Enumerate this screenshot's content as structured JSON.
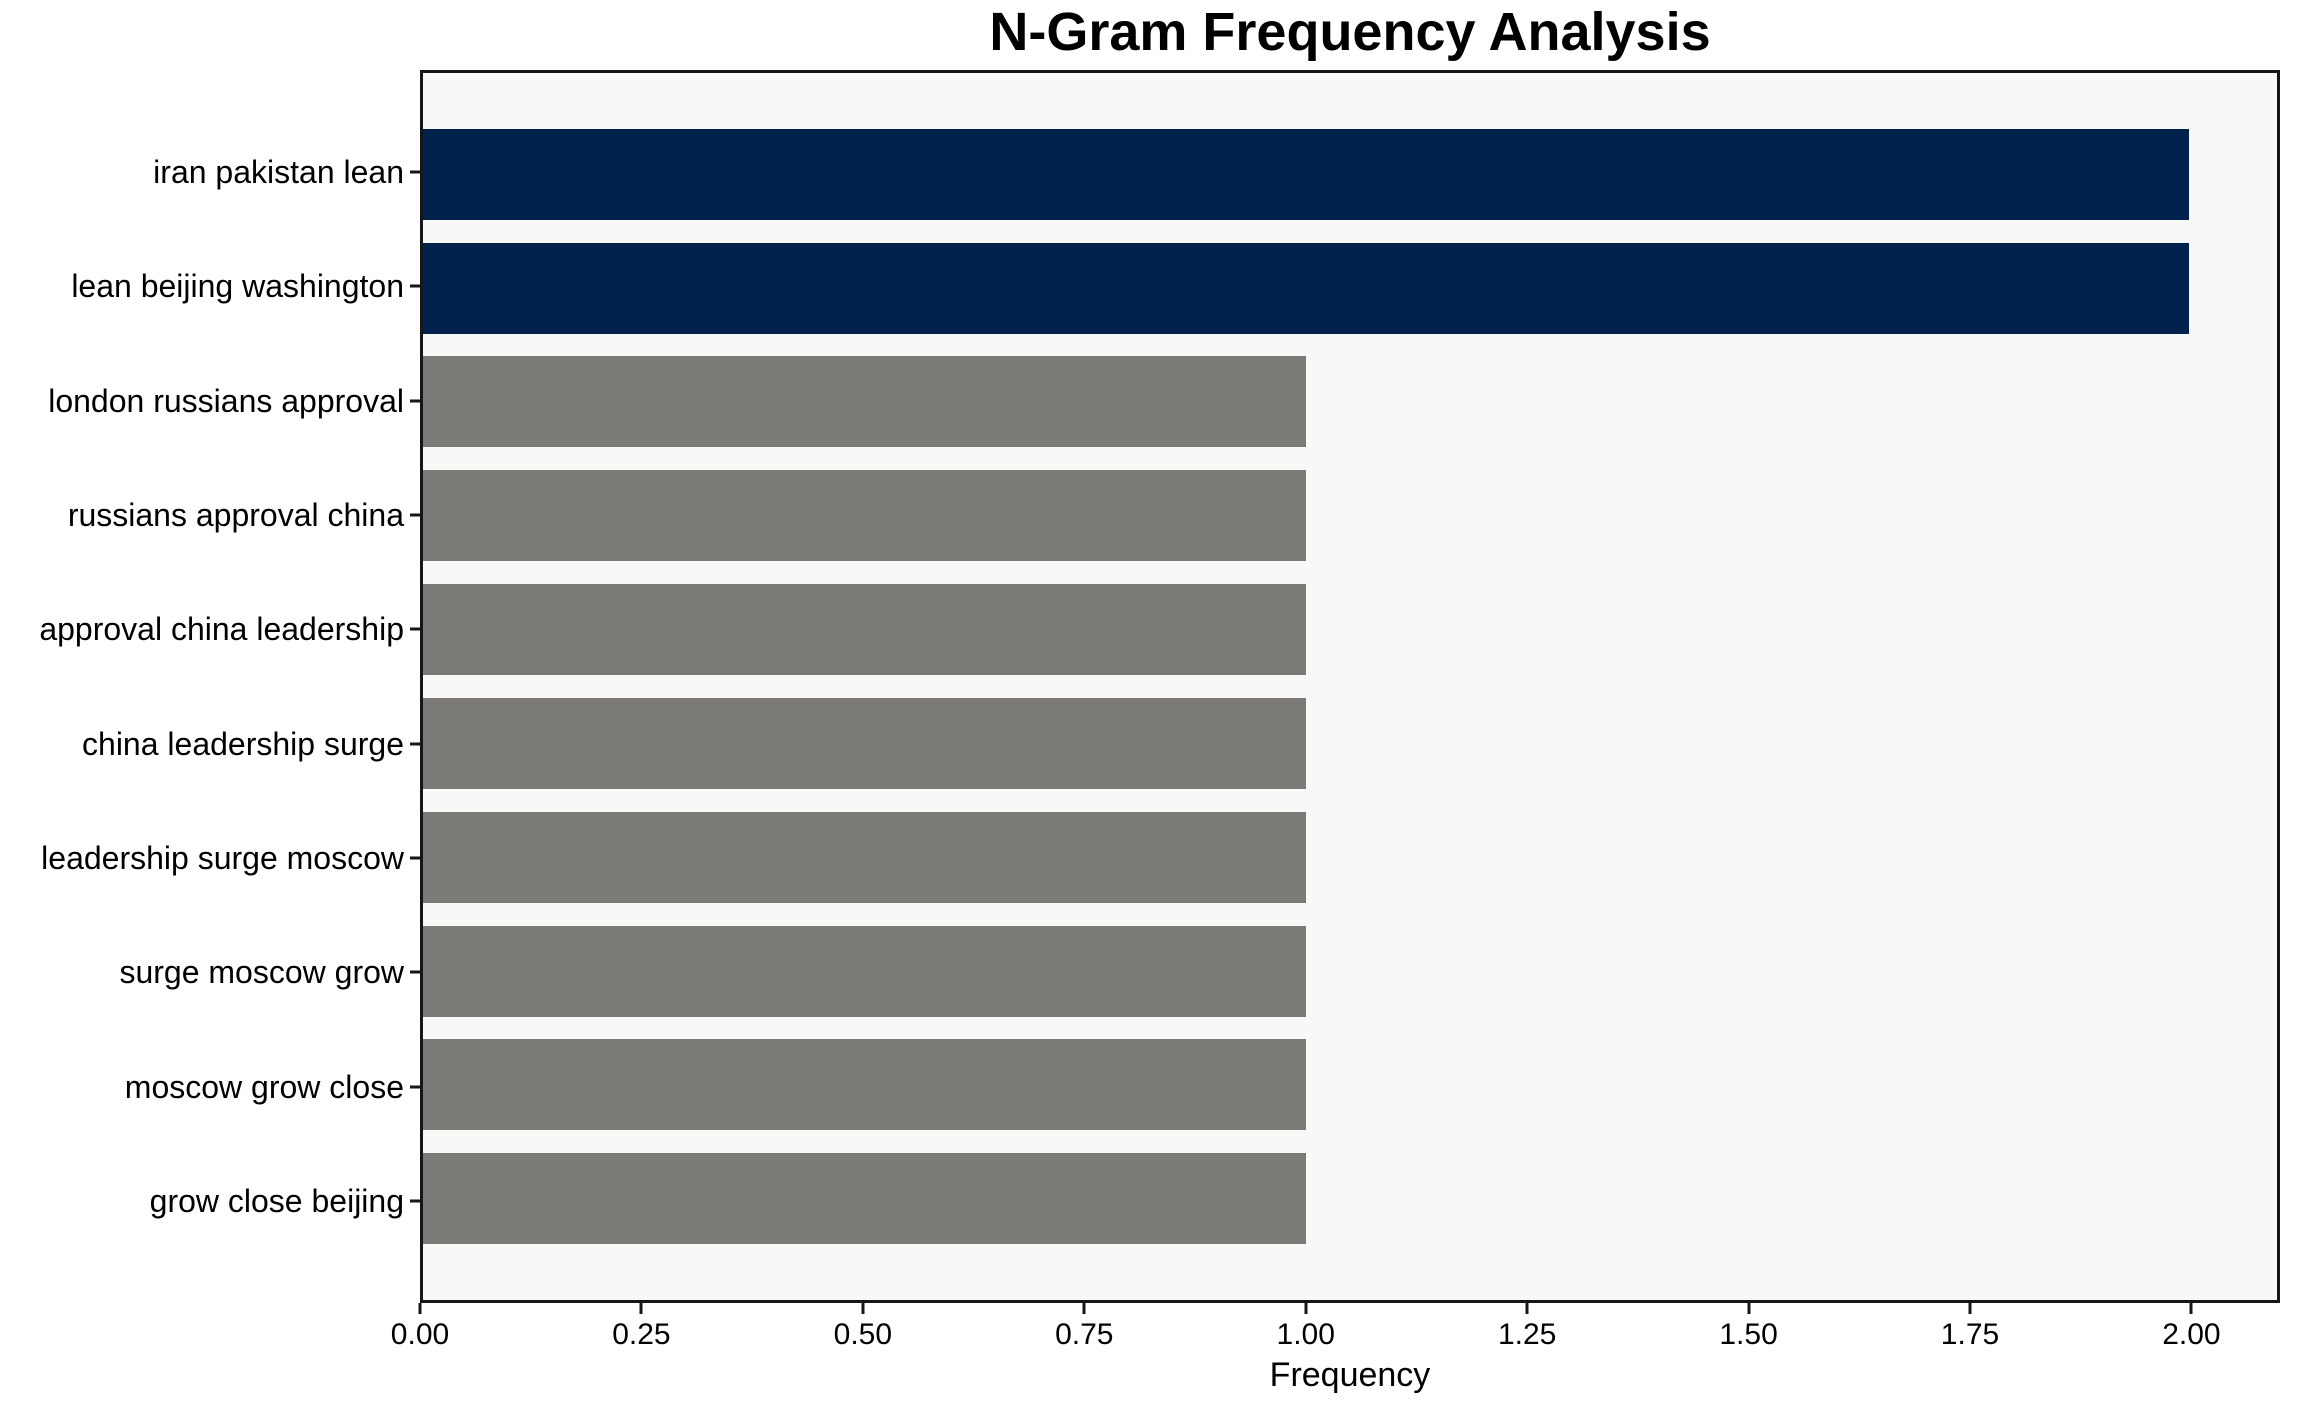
{
  "chart_data": {
    "type": "bar",
    "orientation": "horizontal",
    "title": "N-Gram Frequency Analysis",
    "xlabel": "Frequency",
    "ylabel": "",
    "categories": [
      "iran pakistan lean",
      "lean beijing washington",
      "london russians approval",
      "russians approval china",
      "approval china leadership",
      "china leadership surge",
      "leadership surge moscow",
      "surge moscow grow",
      "moscow grow close",
      "grow close beijing"
    ],
    "values": [
      2,
      2,
      1,
      1,
      1,
      1,
      1,
      1,
      1,
      1
    ],
    "bar_colors": [
      "#00224c",
      "#00224c",
      "#7b7a77",
      "#7b7a77",
      "#7b7a77",
      "#7b7a77",
      "#7b7a77",
      "#7b7a77",
      "#7b7a77",
      "#7b7a77"
    ],
    "xlim": [
      0,
      2.1
    ],
    "x_tick_values": [
      0,
      0.25,
      0.5,
      0.75,
      1.0,
      1.25,
      1.5,
      1.75,
      2.0
    ],
    "x_tick_labels": [
      "0.00",
      "0.25",
      "0.50",
      "0.75",
      "1.00",
      "1.25",
      "1.50",
      "1.75",
      "2.00"
    ],
    "grid": false,
    "legend": null,
    "colors": {
      "highlight": "#00224c",
      "default": "#7b7a77",
      "plot_background": "#f8f8f7",
      "spine": "#161616",
      "figure_background": "#ffffff"
    }
  }
}
